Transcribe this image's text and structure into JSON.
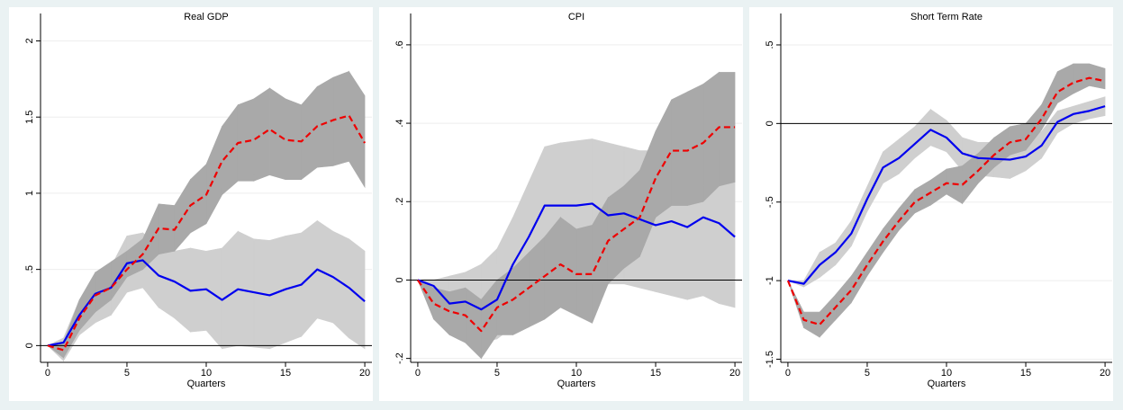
{
  "chart_data": [
    {
      "type": "line",
      "title": "Real GDP",
      "xlabel": "Quarters",
      "x": [
        0,
        1,
        2,
        3,
        4,
        5,
        6,
        7,
        8,
        9,
        10,
        11,
        12,
        13,
        14,
        15,
        16,
        17,
        18,
        19,
        20
      ],
      "xlim": [
        -0.45,
        20.45
      ],
      "xticks": [
        0,
        5,
        10,
        15,
        20
      ],
      "ylim": [
        -0.11,
        2.18
      ],
      "yticks": [
        0,
        {
          "value": 0.5,
          "label": ".5"
        },
        1,
        1.5,
        2
      ],
      "grid": true,
      "reference_line": 0,
      "bands": [
        {
          "color": "#cfcfcf",
          "lower": [
            0,
            -0.1,
            0.07,
            0.15,
            0.2,
            0.35,
            0.38,
            0.25,
            0.18,
            0.09,
            0.1,
            -0.02,
            0,
            -0.01,
            -0.02,
            0.02,
            0.06,
            0.18,
            0.15,
            0.05,
            -0.02
          ],
          "upper": [
            0,
            0.05,
            0.3,
            0.45,
            0.52,
            0.72,
            0.74,
            0.66,
            0.62,
            0.64,
            0.62,
            0.64,
            0.75,
            0.7,
            0.69,
            0.72,
            0.74,
            0.82,
            0.75,
            0.7,
            0.62
          ]
        },
        {
          "color": "#a9a9a9",
          "lower": [
            0,
            -0.08,
            0.1,
            0.22,
            0.3,
            0.45,
            0.5,
            0.6,
            0.62,
            0.74,
            0.8,
            0.99,
            1.08,
            1.08,
            1.12,
            1.09,
            1.09,
            1.17,
            1.18,
            1.21,
            1.04
          ],
          "upper": [
            0,
            0.02,
            0.3,
            0.48,
            0.55,
            0.62,
            0.7,
            0.93,
            0.92,
            1.09,
            1.19,
            1.44,
            1.58,
            1.62,
            1.69,
            1.62,
            1.58,
            1.7,
            1.76,
            1.8,
            1.64
          ]
        }
      ],
      "series": [
        {
          "color": "#0000ee",
          "dash": false,
          "values": [
            0,
            0.02,
            0.2,
            0.34,
            0.38,
            0.54,
            0.56,
            0.46,
            0.42,
            0.36,
            0.37,
            0.3,
            0.37,
            0.35,
            0.33,
            0.37,
            0.4,
            0.5,
            0.45,
            0.38,
            0.29
          ]
        },
        {
          "color": "#ee0000",
          "dash": true,
          "values": [
            0,
            -0.03,
            0.18,
            0.33,
            0.38,
            0.5,
            0.6,
            0.77,
            0.76,
            0.92,
            0.99,
            1.21,
            1.33,
            1.35,
            1.42,
            1.35,
            1.34,
            1.44,
            1.48,
            1.51,
            1.33
          ]
        }
      ]
    },
    {
      "type": "line",
      "title": "CPI",
      "xlabel": "Quarters",
      "x": [
        0,
        1,
        2,
        3,
        4,
        5,
        6,
        7,
        8,
        9,
        10,
        11,
        12,
        13,
        14,
        15,
        16,
        17,
        18,
        19,
        20
      ],
      "xlim": [
        -0.45,
        20.45
      ],
      "xticks": [
        0,
        5,
        10,
        15,
        20
      ],
      "ylim": [
        -0.21,
        0.68
      ],
      "yticks": [
        {
          "value": -0.2,
          "label": "-.2"
        },
        0,
        {
          "value": 0.2,
          "label": ".2"
        },
        {
          "value": 0.4,
          "label": ".4"
        },
        {
          "value": 0.6,
          "label": ".6"
        }
      ],
      "grid": true,
      "reference_line": 0,
      "bands": [
        {
          "color": "#cfcfcf",
          "lower": [
            0,
            -0.03,
            -0.1,
            -0.12,
            -0.16,
            -0.15,
            -0.12,
            -0.05,
            0.03,
            0.03,
            0.01,
            0.03,
            -0.01,
            -0.01,
            -0.02,
            -0.03,
            -0.04,
            -0.05,
            -0.04,
            -0.06,
            -0.07
          ],
          "upper": [
            0,
            0,
            0.01,
            0.02,
            0.04,
            0.08,
            0.16,
            0.25,
            0.34,
            0.35,
            0.355,
            0.36,
            0.35,
            0.34,
            0.33,
            0.33,
            0.32,
            0.32,
            0.33,
            0.33,
            0.33
          ]
        },
        {
          "color": "#a9a9a9",
          "lower": [
            0,
            -0.1,
            -0.14,
            -0.16,
            -0.2,
            -0.14,
            -0.14,
            -0.12,
            -0.1,
            -0.07,
            -0.09,
            -0.11,
            -0.01,
            0.03,
            0.06,
            0.16,
            0.19,
            0.19,
            0.2,
            0.24,
            0.25
          ],
          "upper": [
            0,
            -0.02,
            -0.03,
            -0.02,
            -0.05,
            0,
            0.03,
            0.07,
            0.11,
            0.16,
            0.13,
            0.14,
            0.21,
            0.24,
            0.28,
            0.38,
            0.46,
            0.48,
            0.5,
            0.53,
            0.53
          ]
        }
      ],
      "series": [
        {
          "color": "#0000ee",
          "dash": false,
          "values": [
            0,
            -0.015,
            -0.06,
            -0.055,
            -0.075,
            -0.05,
            0.04,
            0.11,
            0.19,
            0.19,
            0.19,
            0.195,
            0.165,
            0.17,
            0.155,
            0.14,
            0.15,
            0.135,
            0.16,
            0.145,
            0.11
          ]
        },
        {
          "color": "#ee0000",
          "dash": true,
          "values": [
            0,
            -0.06,
            -0.08,
            -0.09,
            -0.13,
            -0.07,
            -0.05,
            -0.02,
            0.01,
            0.04,
            0.015,
            0.015,
            0.1,
            0.13,
            0.16,
            0.26,
            0.33,
            0.33,
            0.35,
            0.39,
            0.39
          ]
        }
      ]
    },
    {
      "type": "line",
      "title": "Short Term Rate",
      "xlabel": "Quarters",
      "x": [
        0,
        1,
        2,
        3,
        4,
        5,
        6,
        7,
        8,
        9,
        10,
        11,
        12,
        13,
        14,
        15,
        16,
        17,
        18,
        19,
        20
      ],
      "xlim": [
        -0.45,
        20.45
      ],
      "xticks": [
        0,
        5,
        10,
        15,
        20
      ],
      "ylim": [
        -1.52,
        0.7
      ],
      "yticks": [
        -1.5,
        -1,
        {
          "value": -0.5,
          "label": "-.5"
        },
        0,
        {
          "value": 0.5,
          "label": ".5"
        }
      ],
      "grid": true,
      "reference_line": 0,
      "bands": [
        {
          "color": "#cfcfcf",
          "lower": [
            -1,
            -1.04,
            -0.98,
            -0.9,
            -0.78,
            -0.56,
            -0.38,
            -0.32,
            -0.22,
            -0.14,
            -0.18,
            -0.3,
            -0.33,
            -0.34,
            -0.35,
            -0.3,
            -0.22,
            -0.06,
            0,
            0.03,
            0.05
          ],
          "upper": [
            -1,
            -1,
            -0.82,
            -0.76,
            -0.62,
            -0.4,
            -0.18,
            -0.1,
            -0.02,
            0.09,
            0.02,
            -0.09,
            -0.12,
            -0.12,
            -0.1,
            -0.1,
            -0.05,
            0.08,
            0.11,
            0.14,
            0.17
          ]
        },
        {
          "color": "#a9a9a9",
          "lower": [
            -1,
            -1.3,
            -1.36,
            -1.25,
            -1.14,
            -0.97,
            -0.82,
            -0.68,
            -0.57,
            -0.52,
            -0.45,
            -0.51,
            -0.38,
            -0.28,
            -0.2,
            -0.17,
            -0.04,
            0.13,
            0.19,
            0.24,
            0.22
          ],
          "upper": [
            -1,
            -1.2,
            -1.2,
            -1.09,
            -0.97,
            -0.82,
            -0.67,
            -0.54,
            -0.42,
            -0.36,
            -0.29,
            -0.27,
            -0.19,
            -0.09,
            -0.02,
            0,
            0.12,
            0.33,
            0.38,
            0.38,
            0.35
          ]
        }
      ],
      "series": [
        {
          "color": "#0000ee",
          "dash": false,
          "values": [
            -1,
            -1.02,
            -0.9,
            -0.82,
            -0.7,
            -0.48,
            -0.28,
            -0.22,
            -0.13,
            -0.04,
            -0.09,
            -0.19,
            -0.22,
            -0.225,
            -0.23,
            -0.21,
            -0.14,
            0.01,
            0.06,
            0.08,
            0.11
          ]
        },
        {
          "color": "#ee0000",
          "dash": true,
          "values": [
            -1,
            -1.25,
            -1.28,
            -1.17,
            -1.06,
            -0.9,
            -0.75,
            -0.62,
            -0.5,
            -0.44,
            -0.38,
            -0.39,
            -0.3,
            -0.2,
            -0.12,
            -0.1,
            0.03,
            0.2,
            0.26,
            0.29,
            0.27
          ]
        }
      ]
    }
  ]
}
